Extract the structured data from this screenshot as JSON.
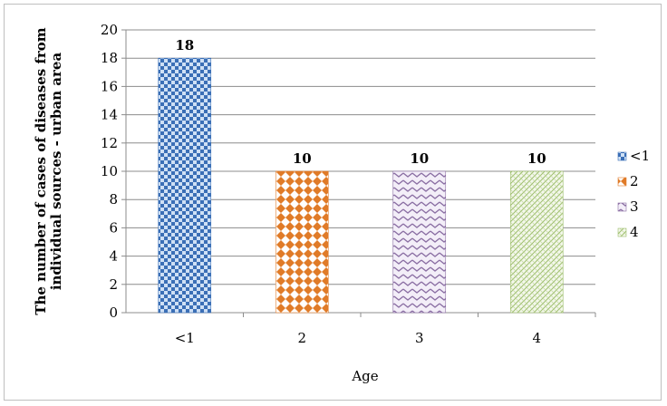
{
  "chart_data": {
    "type": "bar",
    "categories": [
      "<1",
      "2",
      "3",
      "4"
    ],
    "values": [
      18,
      10,
      10,
      10
    ],
    "value_labels": [
      "18",
      "10",
      "10",
      "10"
    ],
    "title": "",
    "xlabel": "Age",
    "ylabel_lines": [
      "The number of cases of diseases from",
      "individual sources - urban area"
    ],
    "ylim": [
      0,
      20
    ],
    "yticks": [
      0,
      2,
      4,
      6,
      8,
      10,
      12,
      14,
      16,
      18,
      20
    ],
    "grid": true,
    "legend_position": "right",
    "legend": [
      "<1",
      "2",
      "3",
      "4"
    ],
    "colors": [
      "#3b6fb6",
      "#e07b28",
      "#8a6ea3",
      "#9fbf6f"
    ]
  }
}
